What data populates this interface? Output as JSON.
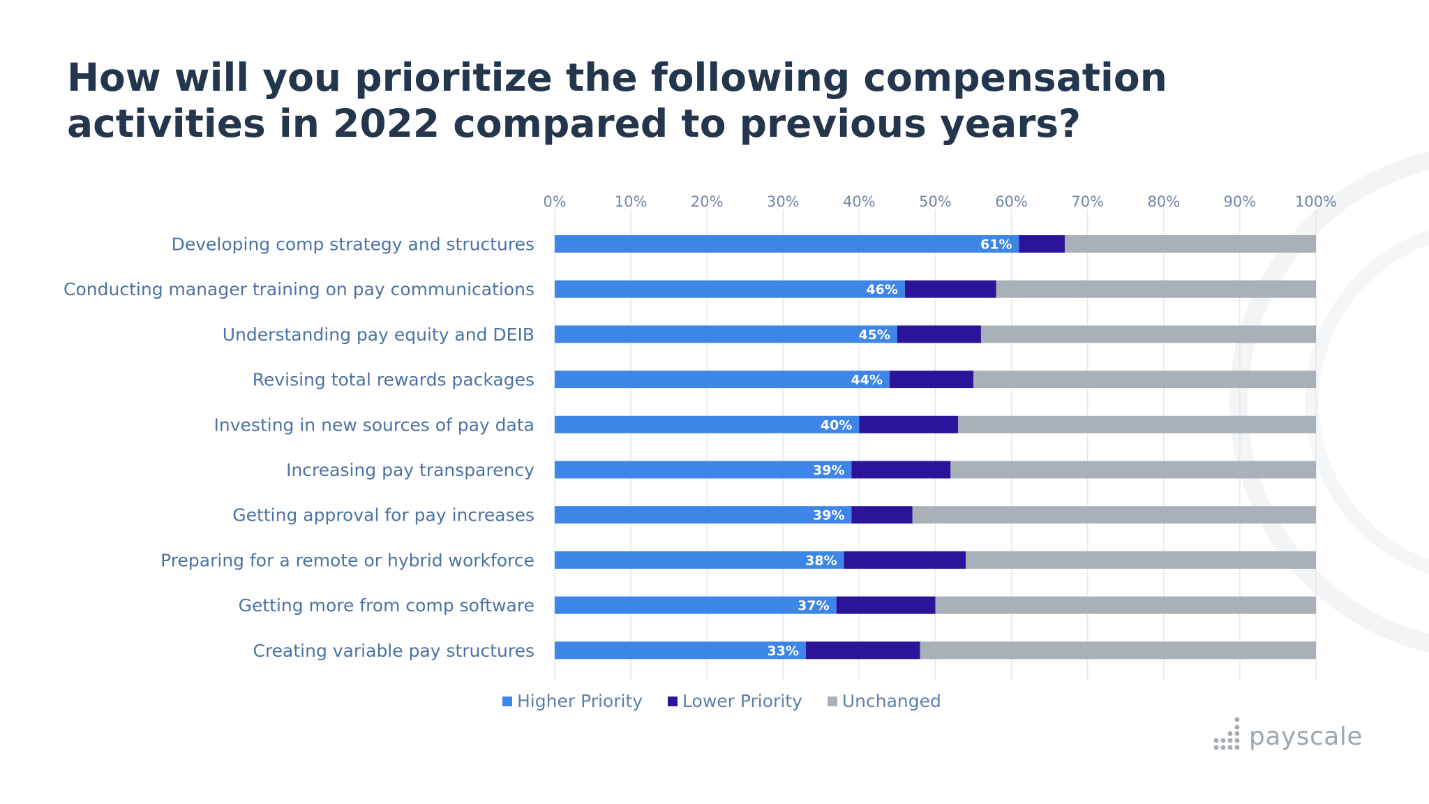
{
  "title_line1": "How will you prioritize the following compensation",
  "title_line2": "activities in 2022 compared to previous years?",
  "logo_text": "payscale",
  "colors": {
    "higher": "#3d85e6",
    "lower": "#2b1499",
    "unchanged": "#a9b0b8",
    "label": "#4c72a3",
    "axis": "#6f88aa",
    "grid": "#e3e7ec"
  },
  "chart_data": {
    "type": "bar",
    "orientation": "horizontal",
    "stacked": true,
    "title": "How will you prioritize the following compensation activities in 2022 compared to previous years?",
    "categories": [
      "Developing comp strategy and structures",
      "Conducting manager training on pay communications",
      "Understanding pay equity and DEIB",
      "Revising total rewards packages",
      "Investing in new sources of pay data",
      "Increasing pay transparency",
      "Getting approval for pay increases",
      "Preparing for a remote or hybrid workforce",
      "Getting more from comp software",
      "Creating variable pay structures"
    ],
    "series": [
      {
        "name": "Higher Priority",
        "values": [
          61,
          46,
          45,
          44,
          40,
          39,
          39,
          38,
          37,
          33
        ]
      },
      {
        "name": "Lower Priority",
        "values": [
          6,
          12,
          11,
          11,
          13,
          13,
          8,
          16,
          13,
          15
        ]
      },
      {
        "name": "Unchanged",
        "values": [
          33,
          42,
          44,
          45,
          47,
          48,
          53,
          46,
          50,
          52
        ]
      }
    ],
    "data_labels": [
      "61%",
      "46%",
      "45%",
      "44%",
      "40%",
      "39%",
      "39%",
      "38%",
      "37%",
      "33%"
    ],
    "xticks": [
      "0%",
      "10%",
      "20%",
      "30%",
      "40%",
      "50%",
      "60%",
      "70%",
      "80%",
      "90%",
      "100%"
    ],
    "xlim": [
      0,
      100
    ],
    "grid": true,
    "legend_position": "bottom"
  }
}
